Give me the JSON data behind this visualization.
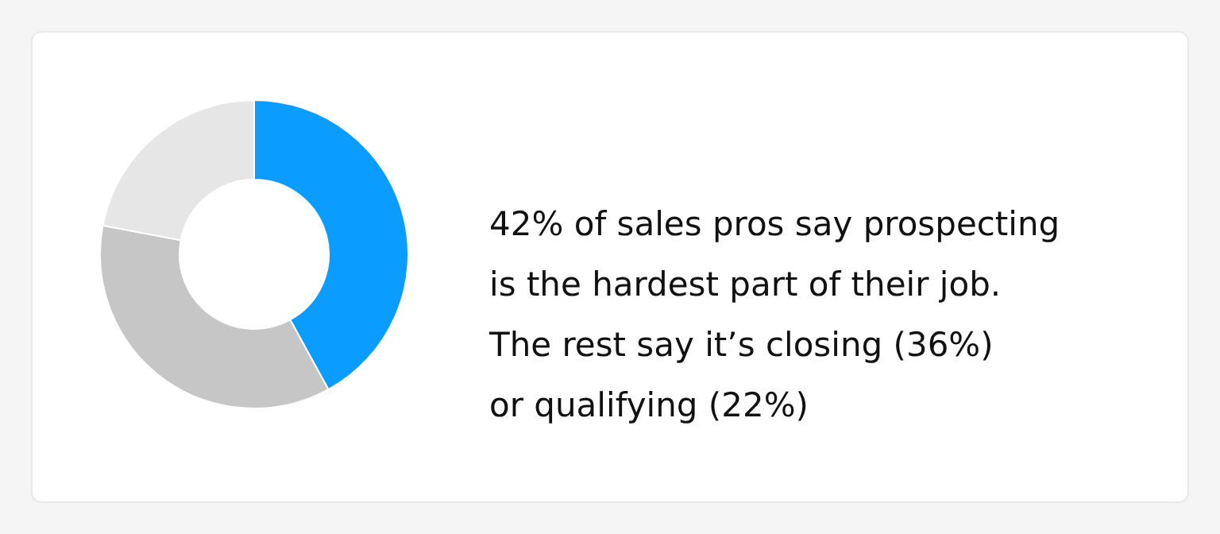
{
  "chart_data": {
    "type": "donut",
    "categories": [
      null,
      null,
      null
    ],
    "values": [
      42,
      36,
      22
    ],
    "colors": [
      "#0a9cff",
      "#c6c6c6",
      "#e6e6e6"
    ],
    "annotations": [
      "42% of sales pros say prospecting",
      "is the hardest part of their job.",
      "The rest say it’s closing (36%)",
      "or qualifying (22%)"
    ]
  }
}
